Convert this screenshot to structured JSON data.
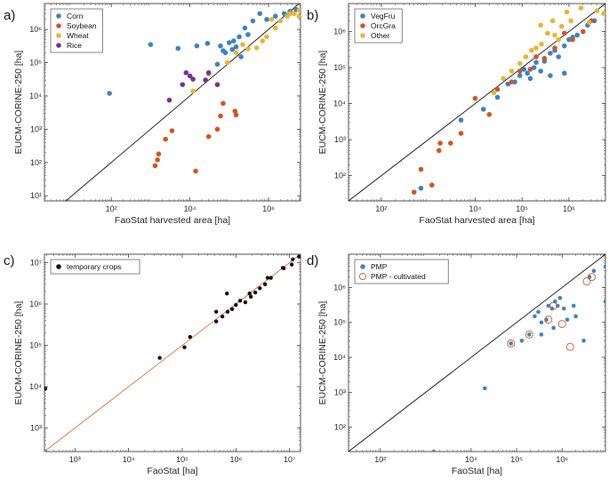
{
  "colors": {
    "blue": "#3b82c4",
    "red": "#d4531f",
    "yellow": "#e6b532",
    "purple": "#7a2e8c",
    "black": "#111111",
    "orange_line": "#e0703e",
    "diag": "#111111"
  },
  "chart_data": [
    {
      "panel": "a)",
      "type": "scatter",
      "xscale": "log",
      "yscale": "log",
      "xlim": [
        2,
        6500000
      ],
      "ylim": [
        7,
        6000000
      ],
      "xticks": [
        100,
        10000,
        1000000
      ],
      "xtick_labels": [
        "10²",
        "10⁴",
        "10⁶"
      ],
      "yticks": [
        10,
        100,
        1000,
        10000,
        100000,
        1000000
      ],
      "ytick_labels": [
        "10¹",
        "10²",
        "10³",
        "10⁴",
        "10⁵",
        "10⁶"
      ],
      "xlabel": "FaoStat harvested area [ha]",
      "ylabel": "EUCM-CORINE-250 [ha]",
      "diagonal": true,
      "legend_position": "top-left",
      "series": [
        {
          "name": "Corn",
          "color": "blue",
          "points": [
            [
              90,
              12000
            ],
            [
              1000,
              350000
            ],
            [
              5000,
              270000
            ],
            [
              15000,
              320000
            ],
            [
              28000,
              380000
            ],
            [
              50000,
              90000
            ],
            [
              70000,
              230000
            ],
            [
              100000,
              400000
            ],
            [
              130000,
              450000
            ],
            [
              180000,
              600000
            ],
            [
              250000,
              1100000
            ],
            [
              400000,
              1800000
            ],
            [
              600000,
              3000000
            ],
            [
              900000,
              2000000
            ],
            [
              1500000,
              2500000
            ],
            [
              2500000,
              3000000
            ],
            [
              3500000,
              3500000
            ],
            [
              5000000,
              4000000
            ],
            [
              150000,
              300000
            ],
            [
              80000,
              200000
            ],
            [
              60000,
              320000
            ],
            [
              200000,
              150000
            ],
            [
              120000,
              250000
            ],
            [
              300000,
              700000
            ]
          ]
        },
        {
          "name": "Soybean",
          "color": "red",
          "points": [
            [
              1300,
              80
            ],
            [
              1500,
              120
            ],
            [
              1600,
              180
            ],
            [
              2400,
              500
            ],
            [
              3500,
              900
            ],
            [
              14000,
              55
            ],
            [
              30000,
              600
            ],
            [
              50000,
              1000
            ],
            [
              60000,
              2500
            ],
            [
              70000,
              6000
            ],
            [
              140000,
              3500
            ],
            [
              150000,
              2700
            ]
          ]
        },
        {
          "name": "Wheat",
          "color": "yellow",
          "points": [
            [
              12000,
              14000
            ],
            [
              30000,
              45000
            ],
            [
              90000,
              100000
            ],
            [
              150000,
              200000
            ],
            [
              220000,
              350000
            ],
            [
              300000,
              260000
            ],
            [
              500000,
              280000
            ],
            [
              700000,
              450000
            ],
            [
              900000,
              600000
            ],
            [
              1500000,
              1100000
            ],
            [
              2000000,
              1800000
            ],
            [
              3000000,
              2500000
            ],
            [
              4500000,
              3000000
            ],
            [
              6000000,
              3800000
            ],
            [
              6000000,
              2500000
            ],
            [
              3500000,
              3000000
            ],
            [
              1200000,
              2000000
            ]
          ]
        },
        {
          "name": "Rice",
          "color": "purple",
          "points": [
            [
              3000,
              7500
            ],
            [
              6500,
              22000
            ],
            [
              8000,
              50000
            ],
            [
              10000,
              40000
            ],
            [
              12000,
              32000
            ],
            [
              25000,
              30000
            ],
            [
              30000,
              50000
            ],
            [
              50000,
              22000
            ]
          ]
        }
      ]
    },
    {
      "panel": "b)",
      "type": "scatter",
      "xscale": "log",
      "yscale": "log",
      "xlim": [
        20,
        6000000
      ],
      "ylim": [
        20,
        6000000
      ],
      "xticks": [
        100,
        10000,
        100000,
        1000000
      ],
      "xtick_labels": [
        "10²",
        "10⁴",
        "10⁵",
        "10⁶"
      ],
      "yticks": [
        100,
        1000,
        10000,
        100000,
        1000000
      ],
      "ytick_labels": [
        "10²",
        "10³",
        "10⁴",
        "10⁵",
        "10⁶"
      ],
      "xlabel": "FaoStat harvested area [ha]",
      "ylabel": "EUCM-CORINE-250 [ha]",
      "diagonal": true,
      "legend_position": "top-left",
      "series": [
        {
          "name": "VegFru",
          "color": "blue",
          "points": [
            [
              700,
              45
            ],
            [
              5000,
              3500
            ],
            [
              15000,
              7000
            ],
            [
              30000,
              15000
            ],
            [
              50000,
              35000
            ],
            [
              70000,
              40000
            ],
            [
              90000,
              60000
            ],
            [
              110000,
              90000
            ],
            [
              130000,
              70000
            ],
            [
              150000,
              50000
            ],
            [
              180000,
              100000
            ],
            [
              200000,
              140000
            ],
            [
              250000,
              80000
            ],
            [
              300000,
              150000
            ],
            [
              400000,
              250000
            ],
            [
              500000,
              300000
            ],
            [
              600000,
              200000
            ],
            [
              800000,
              400000
            ],
            [
              1000000,
              600000
            ],
            [
              1200000,
              700000
            ],
            [
              1500000,
              800000
            ],
            [
              2500000,
              1500000
            ],
            [
              3500000,
              2000000
            ],
            [
              800000,
              70000
            ],
            [
              400000,
              60000
            ]
          ]
        },
        {
          "name": "OrcGra",
          "color": "red",
          "points": [
            [
              500,
              35
            ],
            [
              700,
              150
            ],
            [
              1200,
              55
            ],
            [
              1700,
              500
            ],
            [
              1800,
              800
            ],
            [
              3000,
              800
            ],
            [
              5000,
              1500
            ],
            [
              10000,
              14000
            ],
            [
              20000,
              5000
            ],
            [
              30000,
              25000
            ],
            [
              60000,
              40000
            ],
            [
              90000,
              80000
            ],
            [
              150000,
              90000
            ],
            [
              200000,
              200000
            ],
            [
              300000,
              180000
            ],
            [
              500000,
              350000
            ],
            [
              800000,
              900000
            ],
            [
              1200000,
              600000
            ],
            [
              2000000,
              1000000
            ],
            [
              3000000,
              2000000
            ]
          ]
        },
        {
          "name": "Other",
          "color": "yellow",
          "points": [
            [
              25000,
              20000
            ],
            [
              40000,
              50000
            ],
            [
              60000,
              80000
            ],
            [
              90000,
              130000
            ],
            [
              120000,
              200000
            ],
            [
              160000,
              300000
            ],
            [
              200000,
              350000
            ],
            [
              260000,
              450000
            ],
            [
              350000,
              900000
            ],
            [
              500000,
              800000
            ],
            [
              700000,
              1400000
            ],
            [
              900000,
              3500000
            ],
            [
              1100000,
              2000000
            ],
            [
              1800000,
              4500000
            ],
            [
              2700000,
              1800000
            ],
            [
              4000000,
              3800000
            ],
            [
              5500000,
              3200000
            ],
            [
              450000,
              2000000
            ],
            [
              250000,
              1500000
            ],
            [
              600000,
              600000
            ]
          ]
        }
      ]
    },
    {
      "panel": "c)",
      "type": "scatter",
      "xscale": "log",
      "yscale": "log",
      "xlim": [
        270,
        16000000
      ],
      "ylim": [
        270,
        16000000
      ],
      "xticks": [
        1000,
        10000,
        100000,
        1000000,
        10000000
      ],
      "xtick_labels": [
        "10³",
        "10⁴",
        "10⁵",
        "10⁶",
        "10⁷"
      ],
      "yticks": [
        1000,
        10000,
        100000,
        1000000,
        10000000
      ],
      "ytick_labels": [
        "10³",
        "10⁴",
        "10⁵",
        "10⁶",
        "10⁷"
      ],
      "xlabel": "FaoStat [ha]",
      "ylabel": "EUCM-CORINE-250 [ha]",
      "diagonal": true,
      "diagonal_color": "orange_line",
      "legend_position": "top-left",
      "series": [
        {
          "name": "temporary crops",
          "color": "black",
          "points": [
            [
              280,
              9000
            ],
            [
              38000,
              50000
            ],
            [
              110000,
              90000
            ],
            [
              140000,
              160000
            ],
            [
              430000,
              380000
            ],
            [
              430000,
              650000
            ],
            [
              560000,
              500000
            ],
            [
              680000,
              1800000
            ],
            [
              700000,
              650000
            ],
            [
              850000,
              750000
            ],
            [
              1000000,
              950000
            ],
            [
              1200000,
              1200000
            ],
            [
              1500000,
              1100000
            ],
            [
              1800000,
              1800000
            ],
            [
              1900000,
              1500000
            ],
            [
              2300000,
              1900000
            ],
            [
              2800000,
              2400000
            ],
            [
              3500000,
              3000000
            ],
            [
              3900000,
              4300000
            ],
            [
              4500000,
              4300000
            ],
            [
              7500000,
              7500000
            ],
            [
              7800000,
              7300000
            ],
            [
              11000000,
              9000000
            ],
            [
              11500000,
              12000000
            ],
            [
              15000000,
              14000000
            ]
          ]
        }
      ]
    },
    {
      "panel": "d)",
      "type": "scatter",
      "xscale": "log",
      "yscale": "log",
      "xlim": [
        20,
        9000000
      ],
      "ylim": [
        20,
        9000000
      ],
      "xticks": [
        100,
        10000,
        100000,
        1000000
      ],
      "xtick_labels": [
        "10²",
        "10⁴",
        "10⁵",
        "10⁶"
      ],
      "yticks": [
        100,
        1000,
        10000,
        100000,
        1000000
      ],
      "ytick_labels": [
        "10²",
        "10³",
        "10⁴",
        "10⁵",
        "10⁶"
      ],
      "xlabel": "FaoStat [ha]",
      "ylabel": "EUCM-CORINE-250 [ha]",
      "diagonal": true,
      "legend_position": "top-left",
      "series": [
        {
          "name": "PMP",
          "color": "blue",
          "marker": "dot",
          "points": [
            [
              1500,
              20
            ],
            [
              20000,
              1300
            ],
            [
              75000,
              25000
            ],
            [
              130000,
              30000
            ],
            [
              190000,
              45000
            ],
            [
              250000,
              150000
            ],
            [
              300000,
              200000
            ],
            [
              350000,
              100000
            ],
            [
              450000,
              120000
            ],
            [
              500000,
              300000
            ],
            [
              600000,
              250000
            ],
            [
              700000,
              400000
            ],
            [
              800000,
              300000
            ],
            [
              900000,
              500000
            ],
            [
              1100000,
              250000
            ],
            [
              1300000,
              120000
            ],
            [
              1800000,
              300000
            ],
            [
              2000000,
              150000
            ],
            [
              3000000,
              30000
            ],
            [
              4000000,
              2000000
            ],
            [
              5000000,
              3000000
            ],
            [
              9000000,
              4000000
            ],
            [
              9000000,
              400000
            ],
            [
              350000,
              45000
            ],
            [
              650000,
              70000
            ]
          ]
        },
        {
          "name": "PMP - cultivated",
          "color": "red",
          "marker": "ring",
          "points": [
            [
              75000,
              25000
            ],
            [
              190000,
              45000
            ],
            [
              500000,
              120000
            ],
            [
              650000,
              300000
            ],
            [
              1000000,
              90000
            ],
            [
              1500000,
              20000
            ],
            [
              3500000,
              1500000
            ],
            [
              4500000,
              2000000
            ]
          ]
        }
      ]
    }
  ]
}
